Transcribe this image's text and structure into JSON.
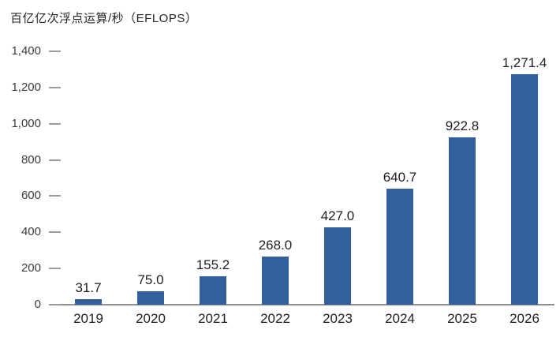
{
  "chart_data": {
    "type": "bar",
    "title": "百亿亿次浮点运算/秒（EFLOPS）",
    "categories": [
      "2019",
      "2020",
      "2021",
      "2022",
      "2023",
      "2024",
      "2025",
      "2026"
    ],
    "values": [
      31.7,
      75.0,
      155.2,
      268.0,
      427.0,
      640.7,
      922.8,
      1271.4
    ],
    "value_labels": [
      "31.7",
      "75.0",
      "155.2",
      "268.0",
      "427.0",
      "640.7",
      "922.8",
      "1,271.4"
    ],
    "y_ticks": [
      "0",
      "200",
      "400",
      "600",
      "800",
      "1,000",
      "1,200",
      "1,400"
    ],
    "y_tick_values": [
      0,
      200,
      400,
      600,
      800,
      1000,
      1200,
      1400
    ],
    "ylim": [
      0,
      1400
    ],
    "xlabel": "",
    "ylabel": "百亿亿次浮点运算/秒（EFLOPS）",
    "bar_color": "#31609C",
    "tick_mark_color": "#9b9b9b",
    "axis_line_color": "#8f8f8f",
    "grid": false,
    "legend_position": "none"
  }
}
